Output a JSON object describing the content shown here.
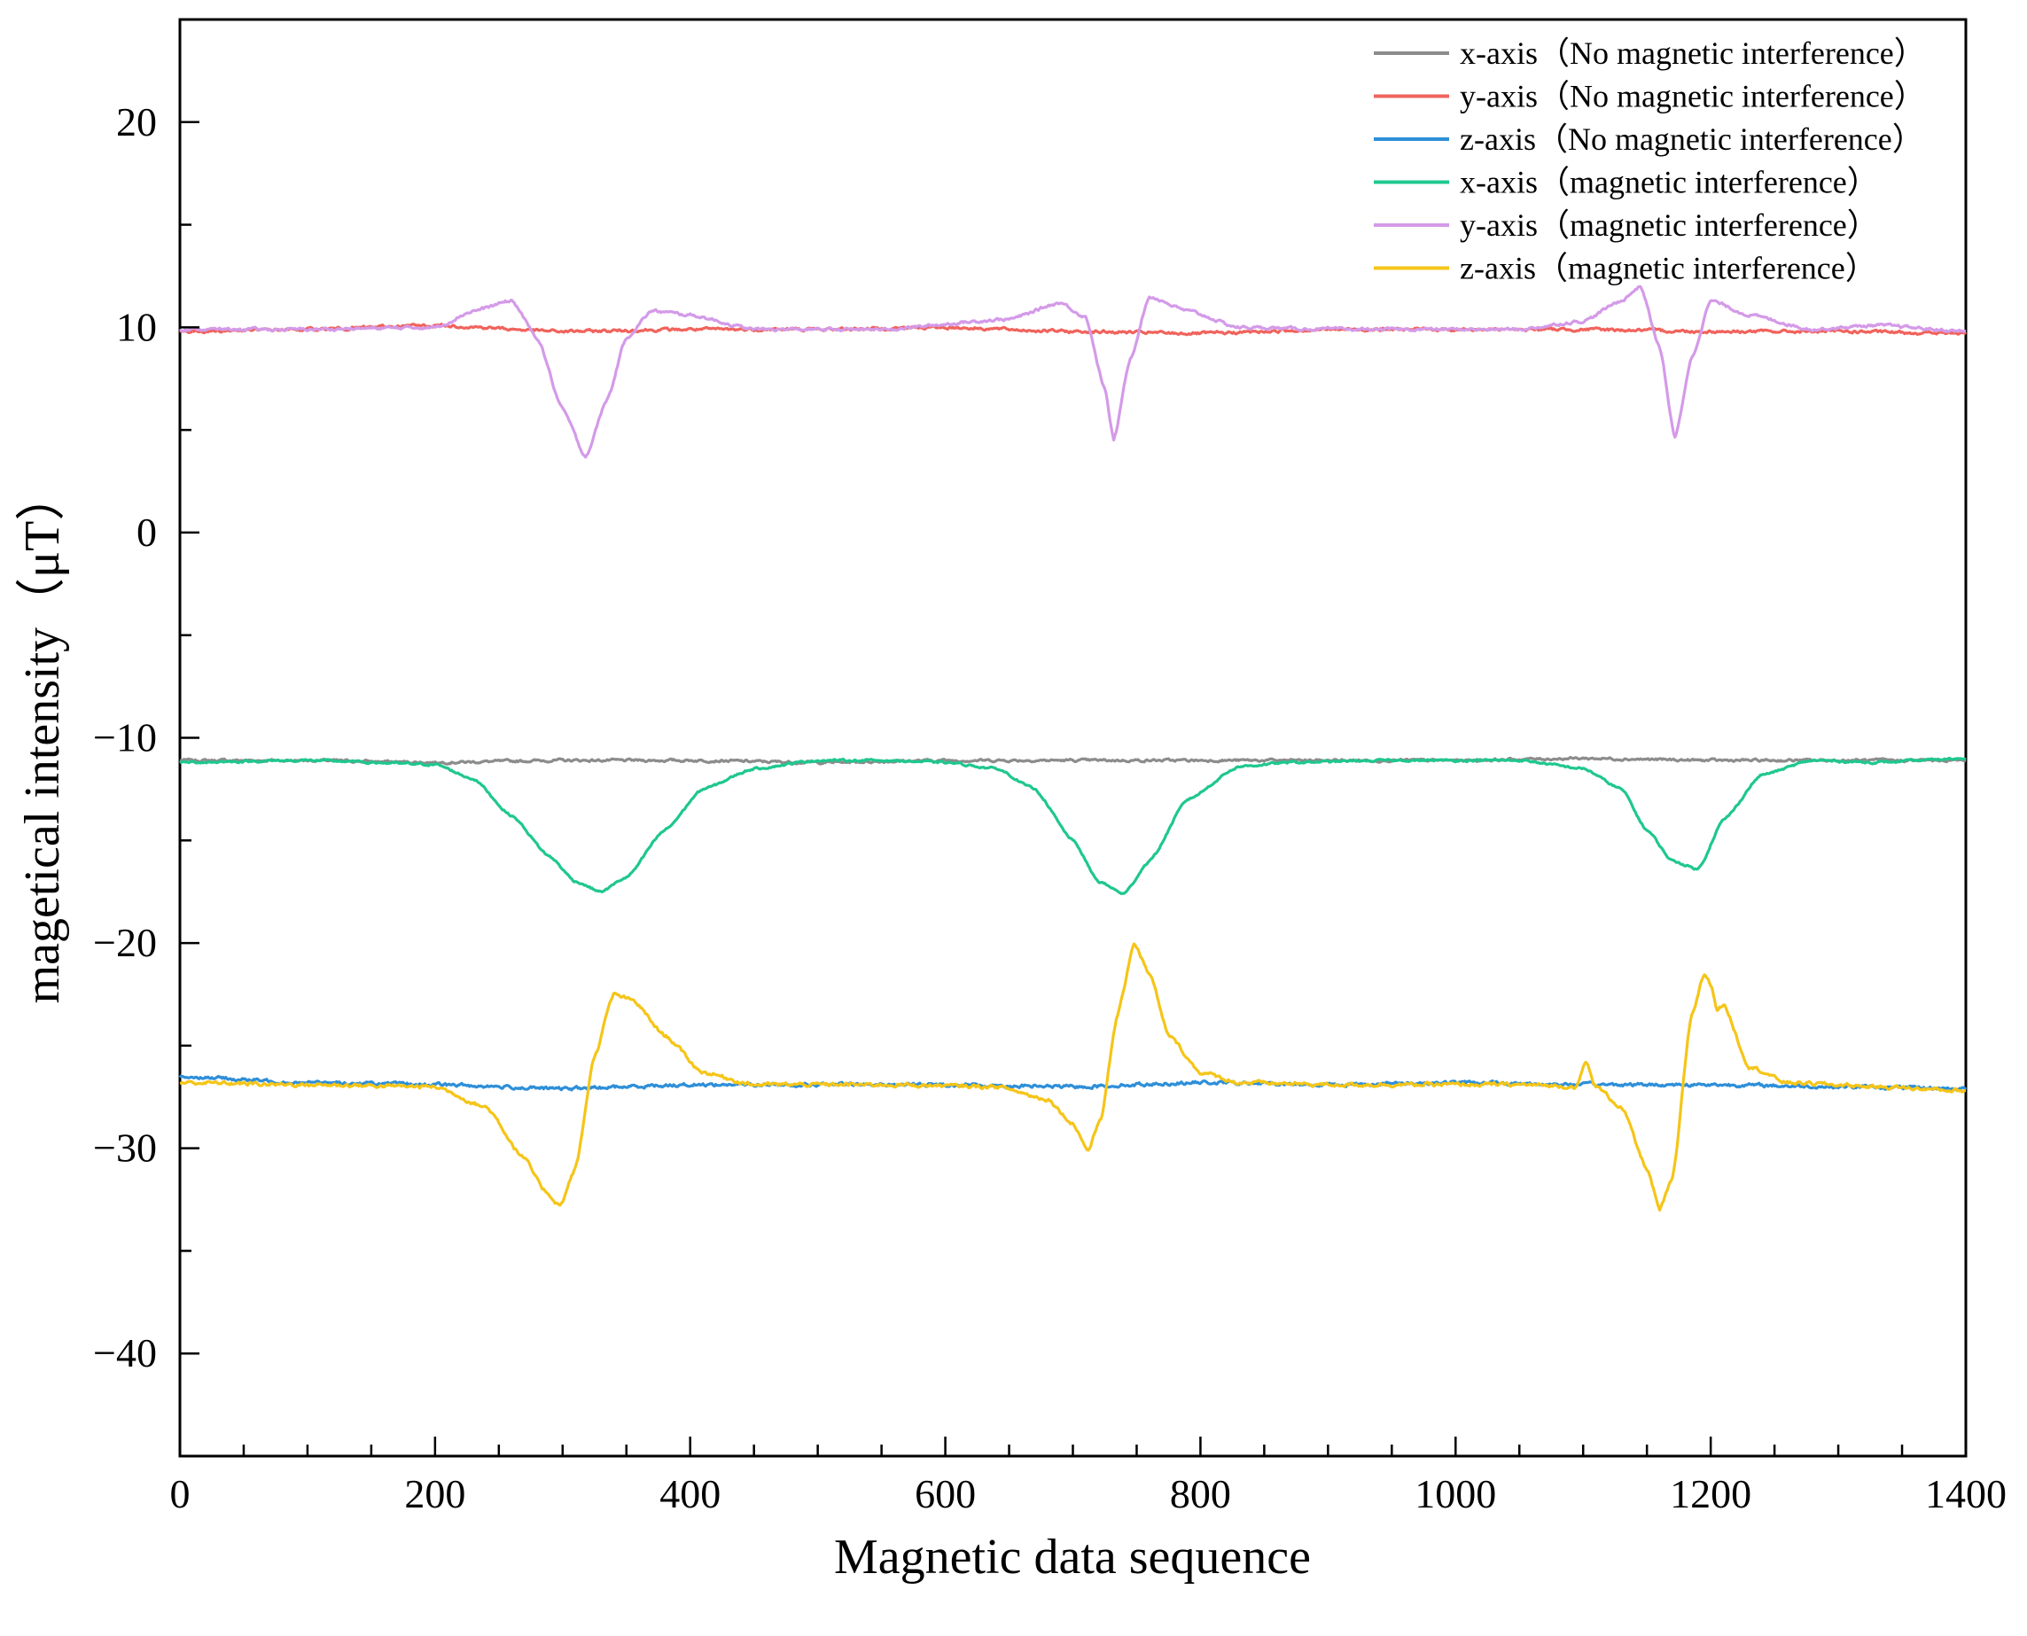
{
  "chart_data": {
    "type": "line",
    "title": "",
    "xlabel": "Magnetic data sequence",
    "ylabel": "magetical intensity（μT）",
    "xlim": [
      0,
      1400
    ],
    "ylim": [
      -45,
      25
    ],
    "x_ticks": [
      0,
      200,
      400,
      600,
      800,
      1000,
      1200,
      1400
    ],
    "x_tick_labels": [
      "0",
      "200",
      "400",
      "600",
      "800",
      "1000",
      "1200",
      "1400"
    ],
    "y_ticks": [
      -40,
      -30,
      -20,
      -10,
      0,
      10,
      20
    ],
    "y_tick_labels": [
      "−40",
      "−30",
      "−20",
      "−10",
      "0",
      "10",
      "20"
    ],
    "grid": false,
    "legend_position": "top-right",
    "series": [
      {
        "name": "x-axis（No magnetic interference）",
        "color": "#8c8c8c",
        "x": [
          0,
          100,
          200,
          300,
          400,
          500,
          600,
          700,
          800,
          900,
          1000,
          1100,
          1200,
          1300,
          1400
        ],
        "y": [
          -11.1,
          -11.1,
          -11.2,
          -11.1,
          -11.1,
          -11.2,
          -11.1,
          -11.1,
          -11.1,
          -11.1,
          -11.1,
          -11.0,
          -11.1,
          -11.1,
          -11.1
        ]
      },
      {
        "name": "y-axis（No magnetic interference）",
        "color": "#f0635c",
        "x": [
          0,
          100,
          200,
          300,
          400,
          500,
          600,
          700,
          800,
          900,
          1000,
          1100,
          1200,
          1300,
          1400
        ],
        "y": [
          9.8,
          9.9,
          10.1,
          9.8,
          9.9,
          9.9,
          10.0,
          9.8,
          9.7,
          9.9,
          9.9,
          9.9,
          9.8,
          9.8,
          9.7
        ]
      },
      {
        "name": "z-axis（No magnetic interference）",
        "color": "#2e8fd8",
        "x": [
          0,
          100,
          200,
          300,
          400,
          500,
          600,
          700,
          800,
          900,
          1000,
          1100,
          1200,
          1300,
          1400
        ],
        "y": [
          -26.5,
          -26.8,
          -26.9,
          -27.1,
          -26.9,
          -26.9,
          -26.9,
          -27.0,
          -26.8,
          -26.9,
          -26.8,
          -26.9,
          -26.9,
          -27.0,
          -27.1
        ]
      },
      {
        "name": "x-axis（magnetic interference）",
        "color": "#1fc78f",
        "x": [
          0,
          100,
          200,
          230,
          260,
          290,
          310,
          330,
          350,
          380,
          410,
          450,
          500,
          550,
          600,
          640,
          670,
          700,
          720,
          740,
          760,
          790,
          830,
          870,
          950,
          1050,
          1100,
          1130,
          1150,
          1170,
          1190,
          1210,
          1240,
          1280,
          1330,
          1400
        ],
        "y": [
          -11.2,
          -11.1,
          -11.3,
          -12.0,
          -13.8,
          -15.8,
          -17.0,
          -17.5,
          -16.8,
          -14.5,
          -12.5,
          -11.5,
          -11.1,
          -11.1,
          -11.2,
          -11.5,
          -12.5,
          -15.0,
          -17.0,
          -17.6,
          -16.0,
          -13.0,
          -11.4,
          -11.2,
          -11.1,
          -11.1,
          -11.5,
          -12.5,
          -14.5,
          -16.0,
          -16.4,
          -14.0,
          -11.8,
          -11.1,
          -11.2,
          -11.0
        ]
      },
      {
        "name": "y-axis（magnetic interference）",
        "color": "#d49ae8",
        "x": [
          0,
          100,
          200,
          230,
          260,
          280,
          300,
          318,
          335,
          350,
          370,
          400,
          450,
          550,
          650,
          690,
          710,
          725,
          732,
          745,
          760,
          790,
          830,
          900,
          1050,
          1100,
          1130,
          1145,
          1160,
          1172,
          1185,
          1200,
          1230,
          1280,
          1330,
          1400
        ],
        "y": [
          9.9,
          9.9,
          10.0,
          10.8,
          11.3,
          9.5,
          6.0,
          3.7,
          6.5,
          9.5,
          10.8,
          10.6,
          9.9,
          9.9,
          10.4,
          11.2,
          10.5,
          7.0,
          4.5,
          8.5,
          11.5,
          10.8,
          10.0,
          9.9,
          9.9,
          10.3,
          11.3,
          12.0,
          9.0,
          4.6,
          8.5,
          11.3,
          10.6,
          9.9,
          10.1,
          9.8
        ]
      },
      {
        "name": "z-axis（magnetic interference）",
        "color": "#f5c518",
        "x": [
          0,
          100,
          200,
          240,
          270,
          285,
          298,
          310,
          325,
          340,
          355,
          380,
          410,
          450,
          550,
          640,
          680,
          700,
          712,
          722,
          735,
          748,
          760,
          775,
          800,
          830,
          900,
          1050,
          1095,
          1102,
          1110,
          1130,
          1150,
          1160,
          1170,
          1185,
          1195,
          1200,
          1205,
          1210,
          1230,
          1260,
          1330,
          1400
        ],
        "y": [
          -26.8,
          -26.9,
          -27.0,
          -28.0,
          -30.5,
          -32.0,
          -32.8,
          -31.0,
          -25.5,
          -22.5,
          -22.8,
          -24.5,
          -26.3,
          -26.9,
          -26.9,
          -27.0,
          -27.6,
          -28.8,
          -30.1,
          -28.5,
          -23.5,
          -20.0,
          -21.5,
          -24.5,
          -26.3,
          -26.8,
          -26.9,
          -26.9,
          -27.0,
          -25.8,
          -27.0,
          -28.0,
          -31.0,
          -33.0,
          -31.5,
          -23.5,
          -21.5,
          -22.0,
          -23.2,
          -23.0,
          -26.0,
          -26.8,
          -27.0,
          -27.2
        ]
      }
    ]
  }
}
